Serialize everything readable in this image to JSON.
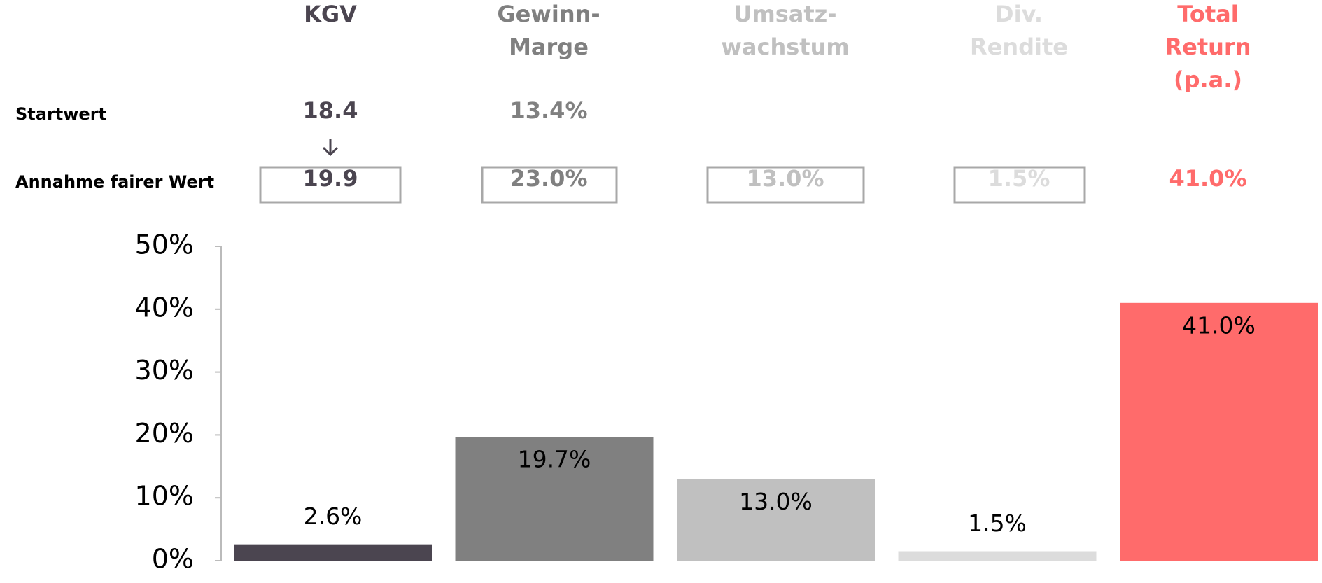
{
  "table": {
    "columns": [
      [
        "KGV"
      ],
      [
        "Gewinn-",
        "Marge"
      ],
      [
        "Umsatz-",
        "wachstum"
      ],
      [
        "Div.",
        "Rendite"
      ],
      [
        "Total",
        "Return",
        "(p.a.)"
      ]
    ],
    "rows": [
      {
        "label": "Startwert",
        "cells": [
          "18.4",
          "13.4%",
          null,
          null,
          null
        ]
      },
      {
        "label": "Annahme fairer Wert",
        "cells": [
          "19.9",
          "23.0%",
          "13.0%",
          "1.5%",
          "41.0%"
        ]
      }
    ]
  },
  "chart_data": {
    "type": "bar",
    "values": [
      2.6,
      19.7,
      13.0,
      1.5,
      41.0
    ],
    "value_labels": [
      "2.6%",
      "19.7%",
      "13.0%",
      "1.5%",
      "41.0%"
    ],
    "colors": [
      "#4b4550",
      "#808080",
      "#c0c0c0",
      "#dcdcdc",
      "#ff6b6b"
    ],
    "ylim": [
      0,
      50
    ],
    "yticks": [
      {
        "value": 0,
        "label": "0%"
      },
      {
        "value": 10,
        "label": "10%"
      },
      {
        "value": 20,
        "label": "20%"
      },
      {
        "value": 30,
        "label": "30%"
      },
      {
        "value": 40,
        "label": "40%"
      },
      {
        "value": 50,
        "label": "50%"
      }
    ]
  }
}
